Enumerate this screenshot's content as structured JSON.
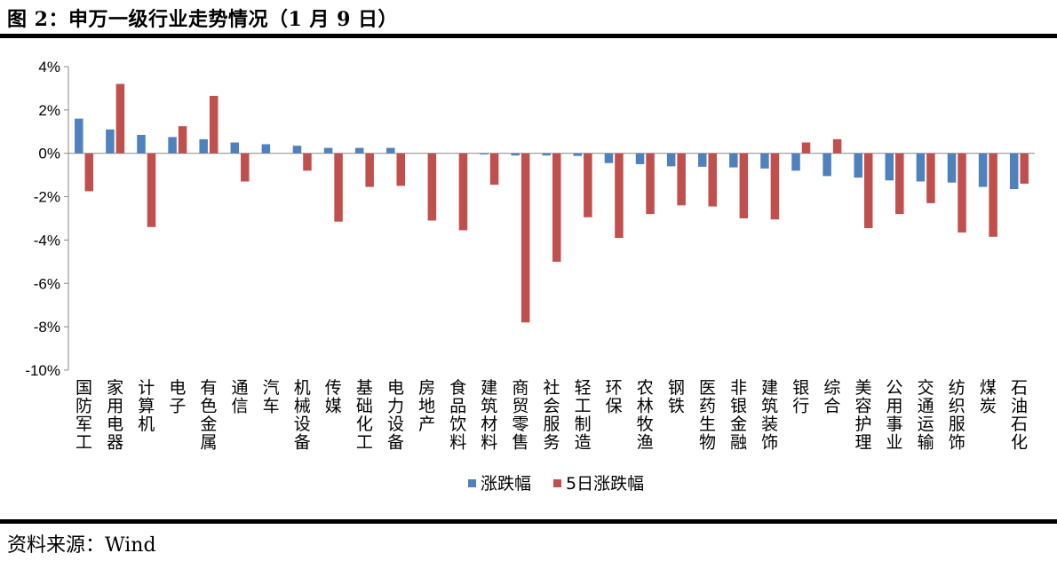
{
  "header": {
    "title": "图 2：申万一级行业走势情况（1 月 9 日）"
  },
  "footer": {
    "source_label": "资料来源：",
    "source_value": "Wind"
  },
  "colors": {
    "series1": "#4f81bd",
    "series2": "#c0504d"
  },
  "chart_data": {
    "type": "bar",
    "ylim": [
      -10,
      4
    ],
    "yticks": [
      4,
      2,
      0,
      -2,
      -4,
      -6,
      -8,
      -10
    ],
    "ytick_labels": [
      "4%",
      "2%",
      "0%",
      "-2%",
      "-4%",
      "-6%",
      "-8%",
      "-10%"
    ],
    "legend_position": "bottom",
    "grid": false,
    "categories": [
      "国防军工",
      "家用电器",
      "计算机",
      "电子",
      "有色金属",
      "通信",
      "汽车",
      "机械设备",
      "传媒",
      "基础化工",
      "电力设备",
      "房地产",
      "食品饮料",
      "建筑材料",
      "商贸零售",
      "社会服务",
      "轻工制造",
      "环保",
      "农林牧渔",
      "钢铁",
      "医药生物",
      "非银金融",
      "建筑装饰",
      "银行",
      "综合",
      "美容护理",
      "公用事业",
      "交通运输",
      "纺织服饰",
      "煤炭",
      "石油石化"
    ],
    "series": [
      {
        "name": "涨跌幅",
        "values": [
          1.6,
          1.1,
          0.85,
          0.75,
          0.65,
          0.5,
          0.42,
          0.35,
          0.25,
          0.25,
          0.25,
          0.0,
          0.0,
          -0.05,
          -0.1,
          -0.1,
          -0.12,
          -0.45,
          -0.5,
          -0.6,
          -0.62,
          -0.65,
          -0.7,
          -0.8,
          -1.05,
          -1.12,
          -1.25,
          -1.3,
          -1.35,
          -1.55,
          -1.65
        ]
      },
      {
        "name": "5日涨跌幅",
        "values": [
          -1.75,
          3.2,
          -3.4,
          1.25,
          2.65,
          -1.3,
          0.0,
          -0.8,
          -3.15,
          -1.55,
          -1.5,
          -3.1,
          -3.55,
          -1.45,
          -7.8,
          -5.0,
          -2.95,
          -3.9,
          -2.8,
          -2.4,
          -2.45,
          -3.0,
          -3.05,
          0.5,
          0.65,
          -3.45,
          -2.8,
          -2.3,
          -3.65,
          -3.85,
          -1.4
        ]
      }
    ]
  }
}
